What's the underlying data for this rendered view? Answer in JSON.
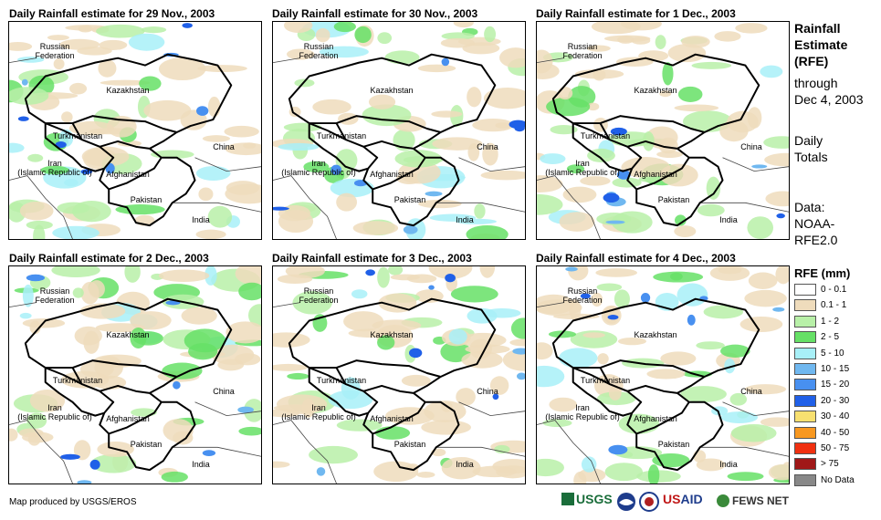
{
  "panels": [
    {
      "title": "Daily Rainfall estimate for 29 Nov., 2003"
    },
    {
      "title": "Daily Rainfall estimate for 30 Nov., 2003"
    },
    {
      "title": "Daily Rainfall estimate for 1 Dec., 2003"
    },
    {
      "title": "Daily Rainfall estimate for 2 Dec., 2003"
    },
    {
      "title": "Daily Rainfall estimate for 3 Dec., 2003"
    },
    {
      "title": "Daily Rainfall estimate for 4 Dec., 2003"
    }
  ],
  "countries": {
    "russia": "Russian\nFederation",
    "kazakhstan": "Kazakhstan",
    "turkmenistan": "Turkmenistan",
    "iran": "Iran\n(Islamic Republic of)",
    "afghanistan": "Afghanistan",
    "pakistan": "Pakistan",
    "china": "China",
    "india": "India"
  },
  "sidebar": {
    "title_lines": [
      "Rainfall",
      "Estimate",
      "(RFE)"
    ],
    "through_lines": [
      "through",
      "Dec 4, 2003"
    ],
    "totals_lines": [
      "Daily",
      "Totals"
    ],
    "data_lines": [
      "Data:",
      "NOAA-",
      "RFE2.0"
    ]
  },
  "legend": {
    "title": "RFE (mm)",
    "items": [
      {
        "label": "0 - 0.1",
        "color": "#ffffff"
      },
      {
        "label": "0.1 - 1",
        "color": "#efdcbc"
      },
      {
        "label": "1 - 2",
        "color": "#b8f0a8"
      },
      {
        "label": "2 - 5",
        "color": "#66e066"
      },
      {
        "label": "5 - 10",
        "color": "#a8f0f8"
      },
      {
        "label": "10 - 15",
        "color": "#70b8f0"
      },
      {
        "label": "15 - 20",
        "color": "#4890f0"
      },
      {
        "label": "20 - 30",
        "color": "#2060e8"
      },
      {
        "label": "30 - 40",
        "color": "#f8e070"
      },
      {
        "label": "40 - 50",
        "color": "#f89820"
      },
      {
        "label": "50 - 75",
        "color": "#f03010"
      },
      {
        "label": "> 75",
        "color": "#a01818"
      },
      {
        "label": "No Data",
        "color": "#888888"
      }
    ]
  },
  "credit": "Map produced by USGS/EROS",
  "logos": {
    "usgs": "USGS",
    "usaid": "USAID",
    "fewsnet": "FEWS NET"
  }
}
